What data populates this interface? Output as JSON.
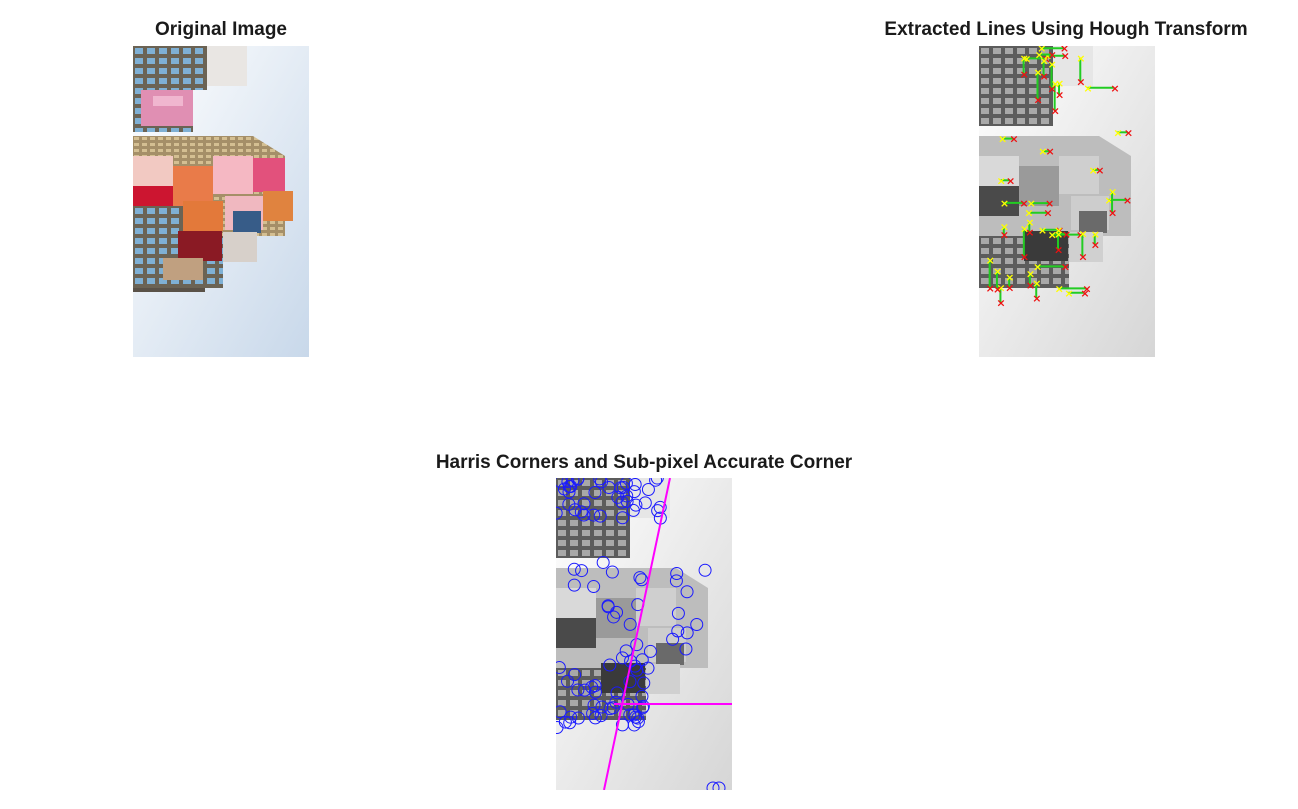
{
  "figure": {
    "panels": [
      {
        "id": "original",
        "title": "Original Image",
        "kind": "color-photo"
      },
      {
        "id": "hough",
        "title": "Extracted Lines Using Hough Transform",
        "kind": "grayscale-with-markers",
        "marker_colors": {
          "line": "#22cc22",
          "start": "#ffff00",
          "end": "#ee1111"
        }
      },
      {
        "id": "harris",
        "title": "Harris Corners and Sub-pixel Accurate Corner",
        "kind": "grayscale-with-markers",
        "marker_colors": {
          "corner": "#1a1aff",
          "line": "#ff00ff"
        }
      }
    ]
  }
}
